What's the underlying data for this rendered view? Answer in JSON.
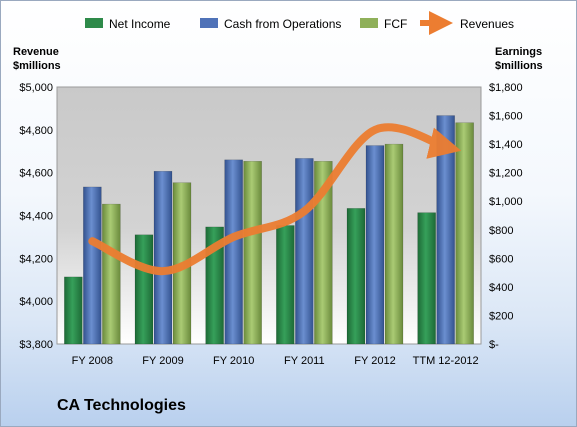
{
  "company": "CA Technologies",
  "chart_data": {
    "type": "bar",
    "categories": [
      "FY 2008",
      "FY 2009",
      "FY 2010",
      "FY 2011",
      "FY 2012",
      "TTM 12-2012"
    ],
    "series": [
      {
        "name": "Net Income",
        "axis": "right",
        "color": "#2e8a4a",
        "values": [
          470,
          765,
          820,
          830,
          950,
          920
        ]
      },
      {
        "name": "Cash from Operations",
        "axis": "right",
        "color": "#4f72b8",
        "values": [
          1100,
          1210,
          1290,
          1300,
          1390,
          1600
        ]
      },
      {
        "name": "FCF",
        "axis": "right",
        "color": "#8fb05a",
        "values": [
          980,
          1130,
          1280,
          1280,
          1400,
          1550
        ]
      },
      {
        "name": "Revenues",
        "type": "line",
        "axis": "left",
        "color": "#ec7d31",
        "values": [
          4280,
          4140,
          4300,
          4420,
          4800,
          4720
        ]
      }
    ],
    "y_left": {
      "label_line1": "Revenue",
      "label_line2": "$millions",
      "ylim": [
        3800,
        5000
      ],
      "ticks": [
        "$3,800",
        "$4,000",
        "$4,200",
        "$4,400",
        "$4,600",
        "$4,800",
        "$5,000"
      ]
    },
    "y_right": {
      "label_line1": "Earnings",
      "label_line2": "$millions",
      "ylim": [
        0,
        1800
      ],
      "ticks": [
        "$-",
        "$200",
        "$400",
        "$600",
        "$800",
        "$1,000",
        "$1,200",
        "$1,400",
        "$1,600",
        "$1,800"
      ]
    },
    "legend_position": "top",
    "grid": false
  }
}
